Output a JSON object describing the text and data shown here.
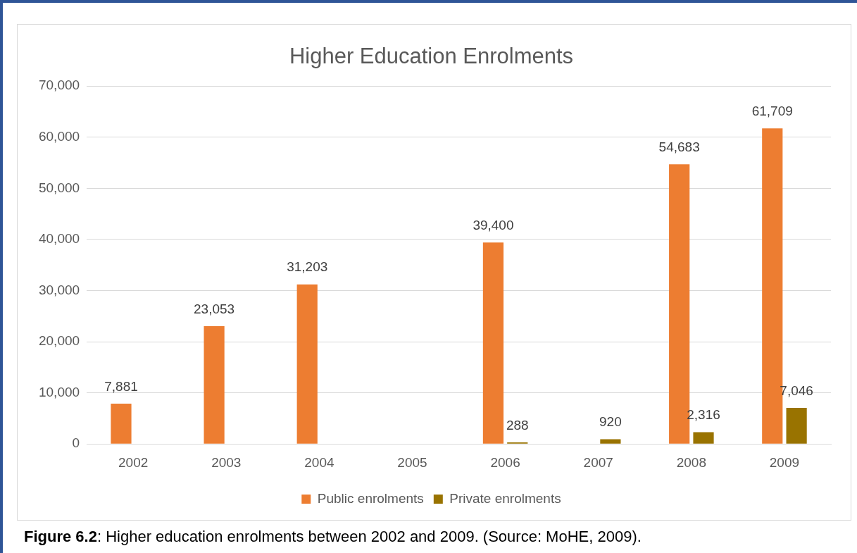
{
  "chart_data": {
    "type": "bar",
    "title": "Higher Education Enrolments",
    "categories": [
      "2002",
      "2003",
      "2004",
      "2005",
      "2006",
      "2007",
      "2008",
      "2009"
    ],
    "series": [
      {
        "name": "Public enrolments",
        "color": "#ed7d31",
        "values": [
          7881,
          23053,
          31203,
          null,
          39400,
          null,
          54683,
          61709
        ],
        "value_labels": [
          "7,881",
          "23,053",
          "31,203",
          null,
          "39,400",
          null,
          "54,683",
          "61,709"
        ]
      },
      {
        "name": "Private enrolments",
        "color": "#997300",
        "values": [
          null,
          null,
          null,
          null,
          288,
          920,
          2316,
          7046
        ],
        "value_labels": [
          null,
          null,
          null,
          null,
          "288",
          "920",
          "2,316",
          "7,046"
        ]
      }
    ],
    "ylim": [
      0,
      70000
    ],
    "yticks": [
      {
        "value": 0,
        "label": "0"
      },
      {
        "value": 10000,
        "label": "10,000"
      },
      {
        "value": 20000,
        "label": "20,000"
      },
      {
        "value": 30000,
        "label": "30,000"
      },
      {
        "value": 40000,
        "label": "40,000"
      },
      {
        "value": 50000,
        "label": "50,000"
      },
      {
        "value": 60000,
        "label": "60,000"
      },
      {
        "value": 70000,
        "label": "70,000"
      }
    ],
    "grid": "y",
    "legend": "bottom",
    "annotations": [
      "Figure 6.2: Higher education enrolments between 2002 and 2009. (Source: MoHE, 2009)."
    ]
  }
}
